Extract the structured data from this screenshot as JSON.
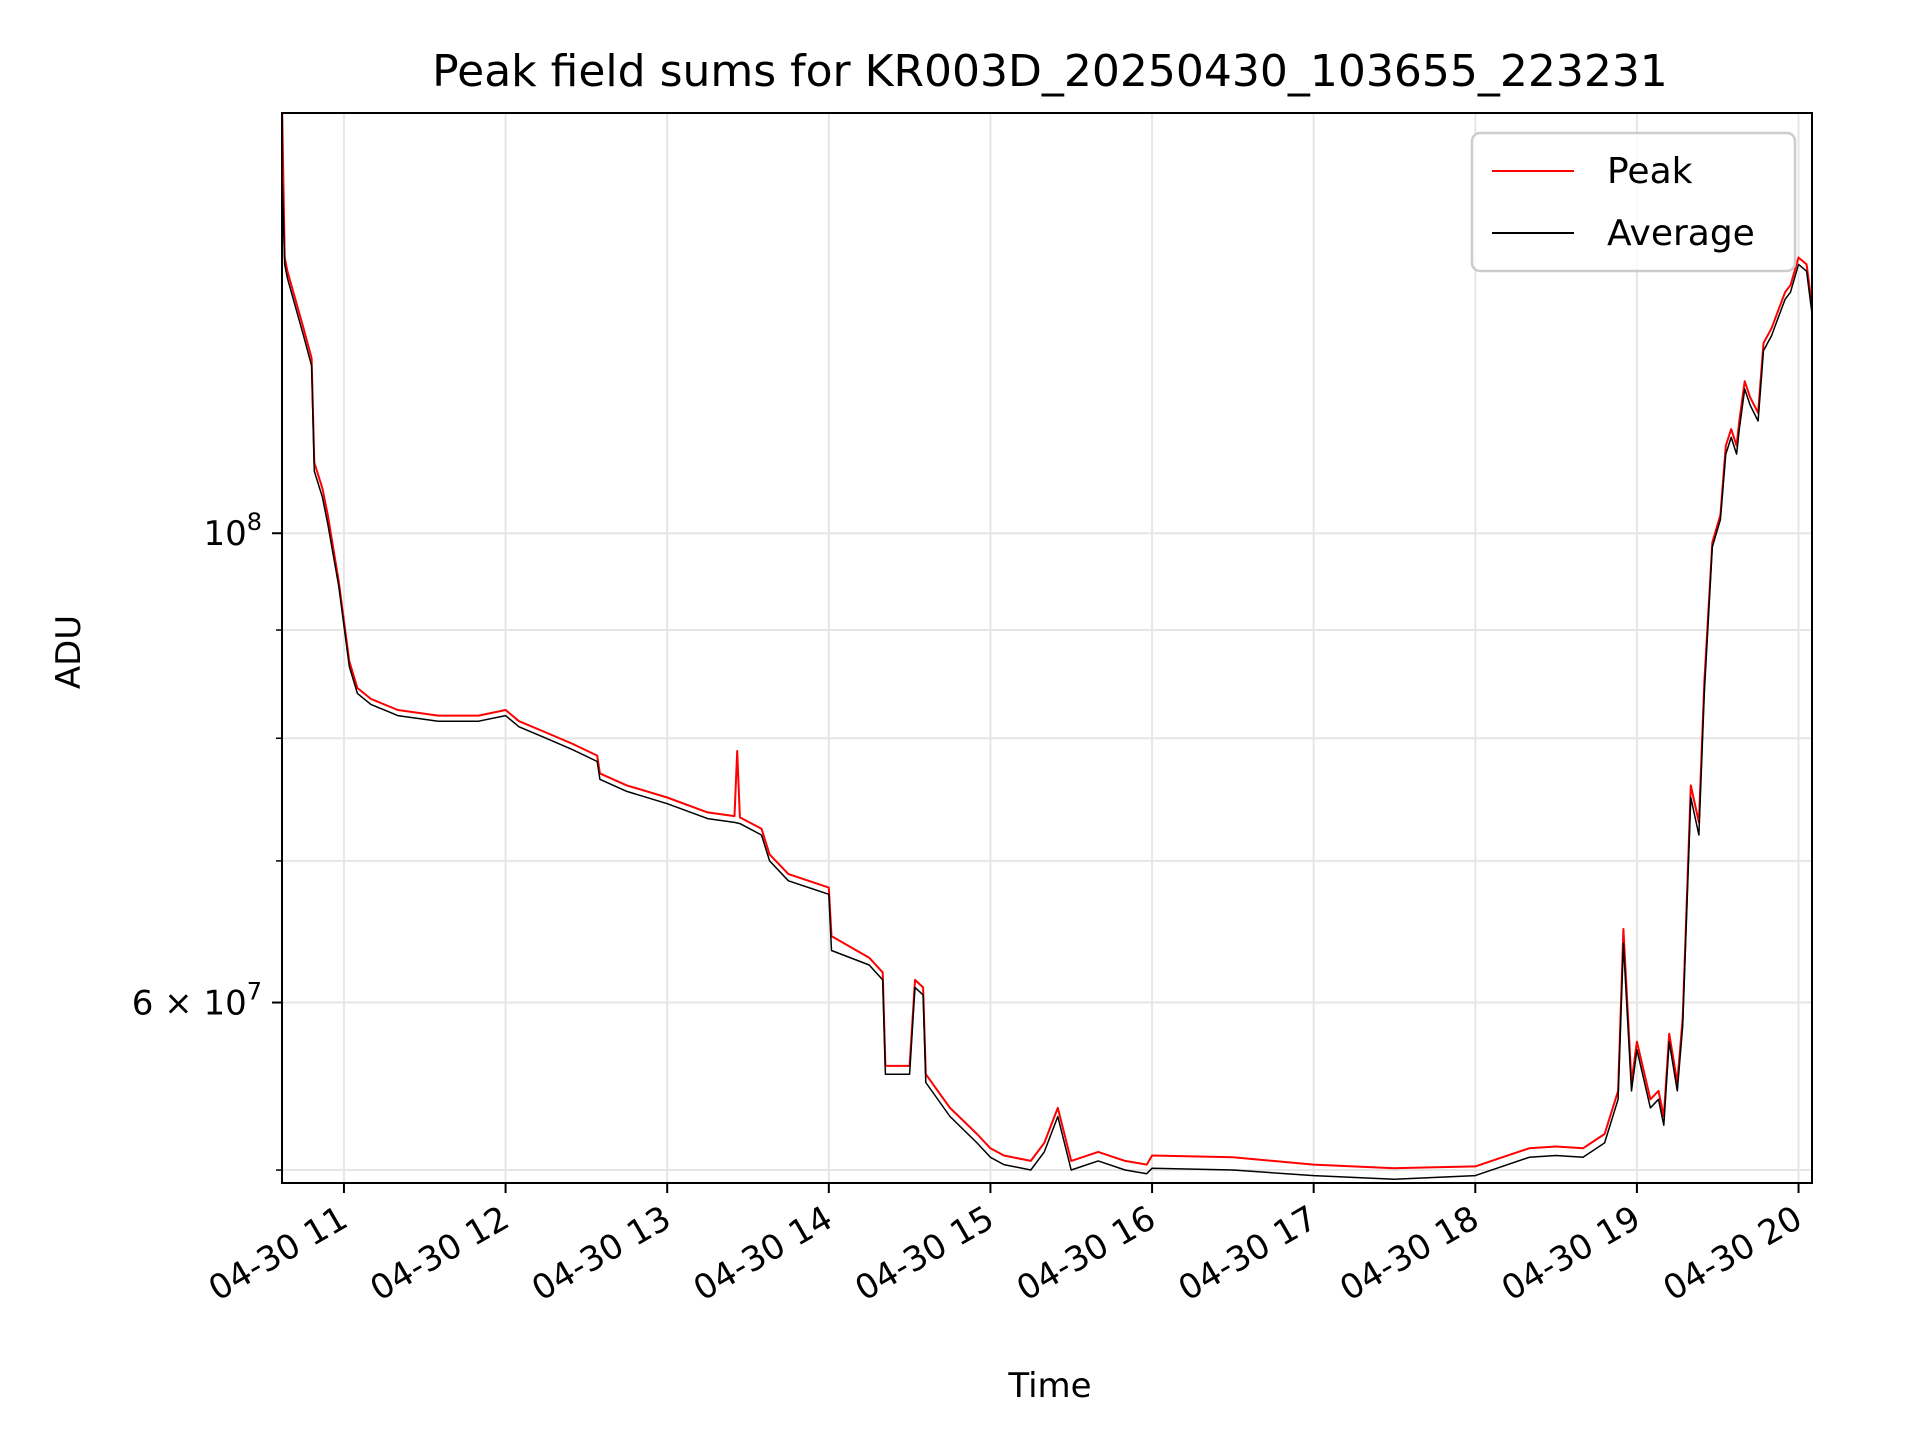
{
  "chart_data": {
    "type": "line",
    "title": "Peak field sums for KR003D_20250430_103655_223231",
    "xlabel": "Time",
    "ylabel": "ADU",
    "x_axis": {
      "kind": "time",
      "date": "2025-04-30",
      "range": [
        "10:37",
        "20:05"
      ],
      "tick_values": [
        "11:00",
        "12:00",
        "13:00",
        "14:00",
        "15:00",
        "16:00",
        "17:00",
        "18:00",
        "19:00",
        "20:00"
      ],
      "tick_labels": [
        "04-30 11",
        "04-30 12",
        "04-30 13",
        "04-30 14",
        "04-30 15",
        "04-30 16",
        "04-30 17",
        "04-30 18",
        "04-30 19",
        "04-30 20"
      ]
    },
    "y_axis": {
      "scale": "log",
      "range": [
        49300000,
        158000000
      ],
      "major_ticks": [
        100000000,
        60000000
      ],
      "major_tick_labels": [
        "10",
        "6 × 10"
      ],
      "major_tick_exponents": [
        "8",
        "7"
      ],
      "minor_ticks": [
        50000000,
        70000000,
        80000000,
        90000000
      ]
    },
    "grid": true,
    "legend": {
      "position": "top-right",
      "entries": [
        "Peak",
        "Average"
      ]
    },
    "series": [
      {
        "name": "Peak",
        "color": "#ff0000",
        "x": [
          "10:37",
          "10:38",
          "10:39",
          "10:45",
          "10:48",
          "10:49",
          "10:52",
          "10:54",
          "10:58",
          "11:02",
          "11:05",
          "11:10",
          "11:20",
          "11:35",
          "11:50",
          "12:00",
          "12:05",
          "12:15",
          "12:25",
          "12:34",
          "12:35",
          "12:45",
          "13:00",
          "13:15",
          "13:25",
          "13:26",
          "13:27",
          "13:35",
          "13:38",
          "13:45",
          "14:00",
          "14:01",
          "14:15",
          "14:20",
          "14:21",
          "14:30",
          "14:32",
          "14:35",
          "14:36",
          "14:45",
          "14:55",
          "15:00",
          "15:05",
          "15:15",
          "15:20",
          "15:25",
          "15:30",
          "15:40",
          "15:50",
          "15:58",
          "16:00",
          "16:30",
          "17:00",
          "17:30",
          "18:00",
          "18:10",
          "18:20",
          "18:30",
          "18:40",
          "18:48",
          "18:53",
          "18:55",
          "18:58",
          "19:00",
          "19:05",
          "19:08",
          "19:10",
          "19:12",
          "19:15",
          "19:17",
          "19:20",
          "19:23",
          "19:25",
          "19:28",
          "19:30",
          "19:31",
          "19:33",
          "19:35",
          "19:37",
          "19:38",
          "19:40",
          "19:42",
          "19:45",
          "19:47",
          "19:50",
          "19:52",
          "19:55",
          "19:57",
          "20:00",
          "20:03",
          "20:05"
        ],
        "y": [
          160000000,
          135000000,
          133000000,
          125000000,
          121000000,
          108000000,
          105000000,
          102000000,
          95000000,
          87000000,
          84500000,
          83500000,
          82500000,
          82000000,
          82000000,
          82500000,
          81500000,
          80500000,
          79500000,
          78500000,
          77000000,
          76000000,
          75000000,
          73800000,
          73500000,
          78900000,
          73400000,
          72500000,
          70500000,
          69000000,
          68000000,
          64500000,
          63000000,
          62000000,
          56000000,
          56000000,
          61500000,
          61000000,
          55500000,
          53500000,
          52000000,
          51200000,
          50800000,
          50500000,
          51500000,
          53500000,
          50500000,
          51000000,
          50500000,
          50300000,
          50800000,
          50700000,
          50300000,
          50100000,
          50200000,
          50700000,
          51200000,
          51300000,
          51200000,
          52000000,
          54500000,
          65000000,
          55000000,
          57500000,
          54000000,
          54500000,
          53000000,
          58000000,
          55000000,
          59000000,
          76000000,
          73000000,
          85000000,
          99000000,
          101000000,
          102000000,
          110000000,
          112000000,
          110000000,
          113000000,
          118000000,
          116000000,
          114000000,
          123000000,
          125000000,
          127000000,
          130000000,
          131000000,
          135000000,
          134000000,
          128000000
        ]
      },
      {
        "name": "Average",
        "color": "#000000",
        "x": [
          "10:37",
          "10:38",
          "10:39",
          "10:45",
          "10:48",
          "10:49",
          "10:52",
          "10:54",
          "10:58",
          "11:02",
          "11:05",
          "11:10",
          "11:20",
          "11:35",
          "11:50",
          "12:00",
          "12:05",
          "12:15",
          "12:25",
          "12:34",
          "12:35",
          "12:45",
          "13:00",
          "13:15",
          "13:25",
          "13:27",
          "13:35",
          "13:38",
          "13:45",
          "14:00",
          "14:01",
          "14:15",
          "14:20",
          "14:21",
          "14:30",
          "14:32",
          "14:35",
          "14:36",
          "14:45",
          "14:55",
          "15:00",
          "15:05",
          "15:15",
          "15:20",
          "15:25",
          "15:30",
          "15:40",
          "15:50",
          "15:58",
          "16:00",
          "16:30",
          "17:00",
          "17:30",
          "18:00",
          "18:10",
          "18:20",
          "18:30",
          "18:40",
          "18:48",
          "18:53",
          "18:55",
          "18:58",
          "19:00",
          "19:05",
          "19:08",
          "19:10",
          "19:12",
          "19:15",
          "19:17",
          "19:20",
          "19:23",
          "19:25",
          "19:28",
          "19:30",
          "19:31",
          "19:33",
          "19:35",
          "19:37",
          "19:38",
          "19:40",
          "19:42",
          "19:45",
          "19:47",
          "19:50",
          "19:52",
          "19:55",
          "19:57",
          "20:00",
          "20:03",
          "20:05"
        ],
        "y": [
          148000000,
          134000000,
          132000000,
          124000000,
          120000000,
          107000000,
          104000000,
          101000000,
          94500000,
          86500000,
          84000000,
          83000000,
          82000000,
          81500000,
          81500000,
          82000000,
          81000000,
          80000000,
          79000000,
          78000000,
          76500000,
          75500000,
          74500000,
          73300000,
          73000000,
          72900000,
          72000000,
          70000000,
          68500000,
          67500000,
          63500000,
          62500000,
          61500000,
          55500000,
          55500000,
          61000000,
          60500000,
          55000000,
          53000000,
          51500000,
          50700000,
          50300000,
          50000000,
          51000000,
          53000000,
          50000000,
          50500000,
          50000000,
          49800000,
          50100000,
          50000000,
          49700000,
          49500000,
          49700000,
          50200000,
          50700000,
          50800000,
          50700000,
          51500000,
          54000000,
          64000000,
          54500000,
          57000000,
          53500000,
          54000000,
          52500000,
          57500000,
          54500000,
          58500000,
          75000000,
          72000000,
          84000000,
          98500000,
          100500000,
          101500000,
          109000000,
          111000000,
          109000000,
          112000000,
          117000000,
          115000000,
          113000000,
          122000000,
          124000000,
          126000000,
          129000000,
          130000000,
          134000000,
          133000000,
          127000000
        ]
      }
    ]
  }
}
